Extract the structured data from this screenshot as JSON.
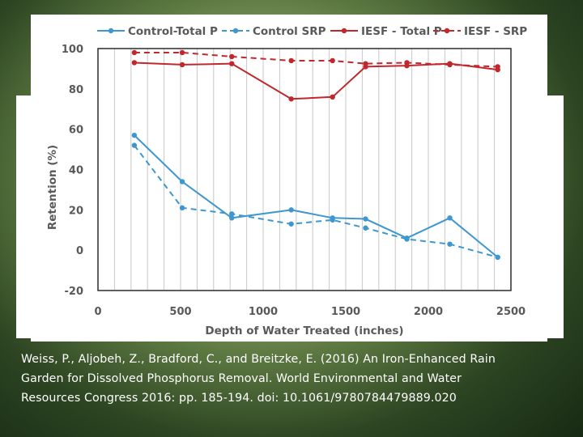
{
  "chart_data": {
    "type": "line",
    "title": "",
    "xlabel": "Depth of Water Treated (inches)",
    "ylabel": "Retention (%)",
    "xlim": [
      0,
      2500
    ],
    "ylim": [
      -20,
      100
    ],
    "x_ticks": [
      "0",
      "500",
      "1000",
      "1500",
      "2000",
      "2500"
    ],
    "y_ticks": [
      "-20",
      "0",
      "20",
      "40",
      "60",
      "80",
      "100"
    ],
    "grid": "vertical",
    "legend_position": "top",
    "series": [
      {
        "name": "Control-Total P",
        "color": "#3e97cf",
        "dashed": false,
        "x": [
          220,
          510,
          810,
          1170,
          1420,
          1620,
          1870,
          2130,
          2420
        ],
        "y": [
          57,
          34,
          16,
          20,
          16,
          15.5,
          6,
          16,
          -3.5
        ]
      },
      {
        "name": "Control SRP",
        "color": "#3e97cf",
        "dashed": true,
        "x": [
          220,
          510,
          810,
          1170,
          1420,
          1620,
          1870,
          2130,
          2420
        ],
        "y": [
          52,
          21,
          18,
          13,
          15,
          11,
          5.5,
          3,
          -3.5
        ]
      },
      {
        "name": "IESF - Total P",
        "color": "#c0282d",
        "dashed": false,
        "x": [
          220,
          510,
          810,
          1170,
          1420,
          1620,
          1870,
          2130,
          2420
        ],
        "y": [
          93,
          92,
          92.5,
          75,
          76,
          91,
          91.5,
          92.5,
          89.5
        ]
      },
      {
        "name": "IESF - SRP",
        "color": "#c0282d",
        "dashed": true,
        "x": [
          220,
          510,
          810,
          1170,
          1420,
          1620,
          1870,
          2130,
          2420
        ],
        "y": [
          98,
          98,
          96,
          94,
          94,
          92.5,
          93,
          92,
          91
        ]
      }
    ]
  },
  "citation": {
    "line1": "Weiss, P., Aljobeh, Z., Bradford, C., and Breitzke, E. (2016) An Iron-Enhanced Rain",
    "line2": "Garden for Dissolved Phosphorus Removal. World Environmental and Water",
    "line3": "Resources Congress 2016: pp. 185-194. doi: 10.1061/9780784479889.020"
  }
}
